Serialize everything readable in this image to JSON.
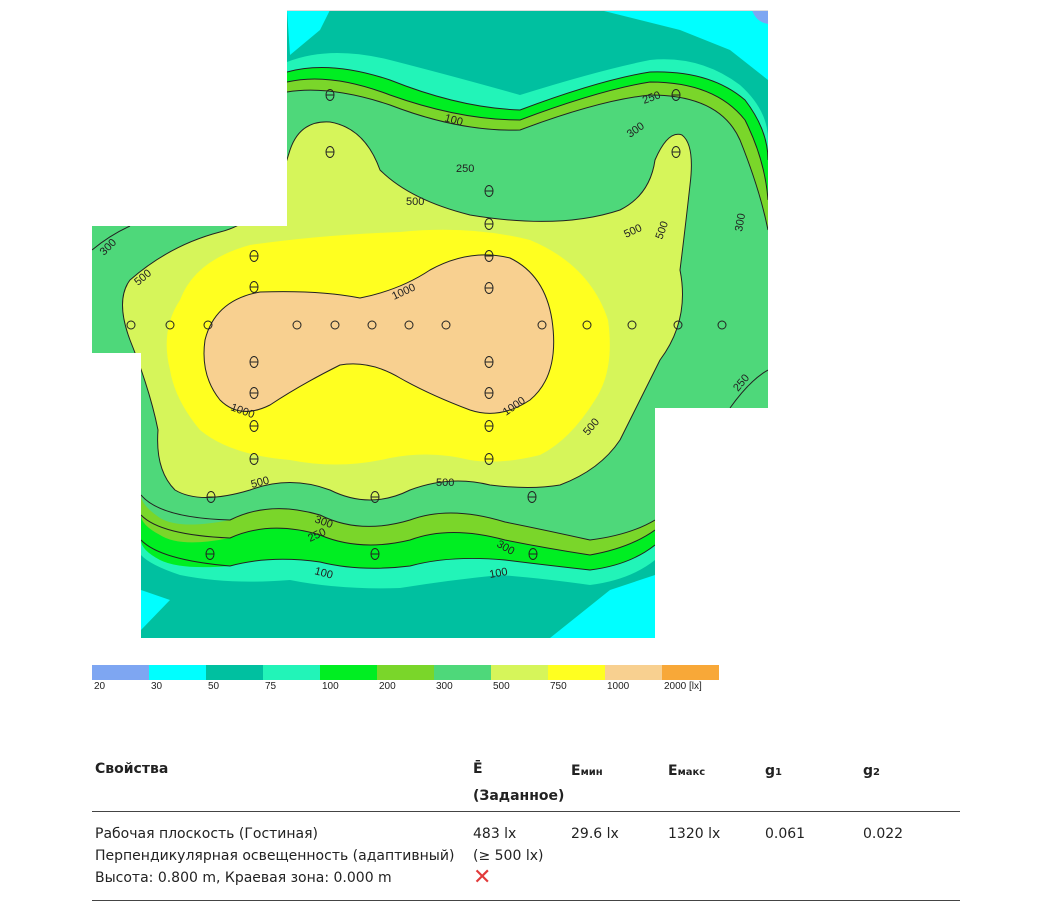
{
  "diagram": {
    "contour_labels": [
      "100",
      "250",
      "300",
      "250",
      "500",
      "500",
      "500",
      "300",
      "250",
      "300",
      "500",
      "1000",
      "1000",
      "1000",
      "500",
      "500",
      "500",
      "300",
      "250",
      "300",
      "100",
      "100"
    ]
  },
  "legend": {
    "values": [
      "20",
      "30",
      "50",
      "75",
      "100",
      "200",
      "300",
      "500",
      "750",
      "1000",
      "2000 [lx]"
    ],
    "colors": [
      "#7ea6f2",
      "#00ffff",
      "#00c0a0",
      "#22f4b8",
      "#00ee22",
      "#7ad62a",
      "#4ed87a",
      "#d6f55a",
      "#ffff20",
      "#f8d090",
      "#f8a838"
    ]
  },
  "table": {
    "headers": {
      "properties": "Свойства",
      "e_avg": "Ē",
      "e_avg_note": "(Заданное)",
      "e_min_main": "E",
      "e_min_sub": "мин",
      "e_max_main": "E",
      "e_max_sub": "макс",
      "g1_main": "g",
      "g1_sub": "1",
      "g2_main": "g",
      "g2_sub": "2"
    },
    "row": {
      "line1": "Рабочая плоскость (Гостиная)",
      "line2": "Перпендикулярная освещенность (адаптивный)",
      "line3": "Высота: 0.800 m, Краевая зона: 0.000 m",
      "e_avg": "483 lx",
      "e_target": "(≥ 500 lx)",
      "status": "✕",
      "e_min": "29.6 lx",
      "e_max": "1320 lx",
      "g1": "0.061",
      "g2": "0.022"
    }
  }
}
